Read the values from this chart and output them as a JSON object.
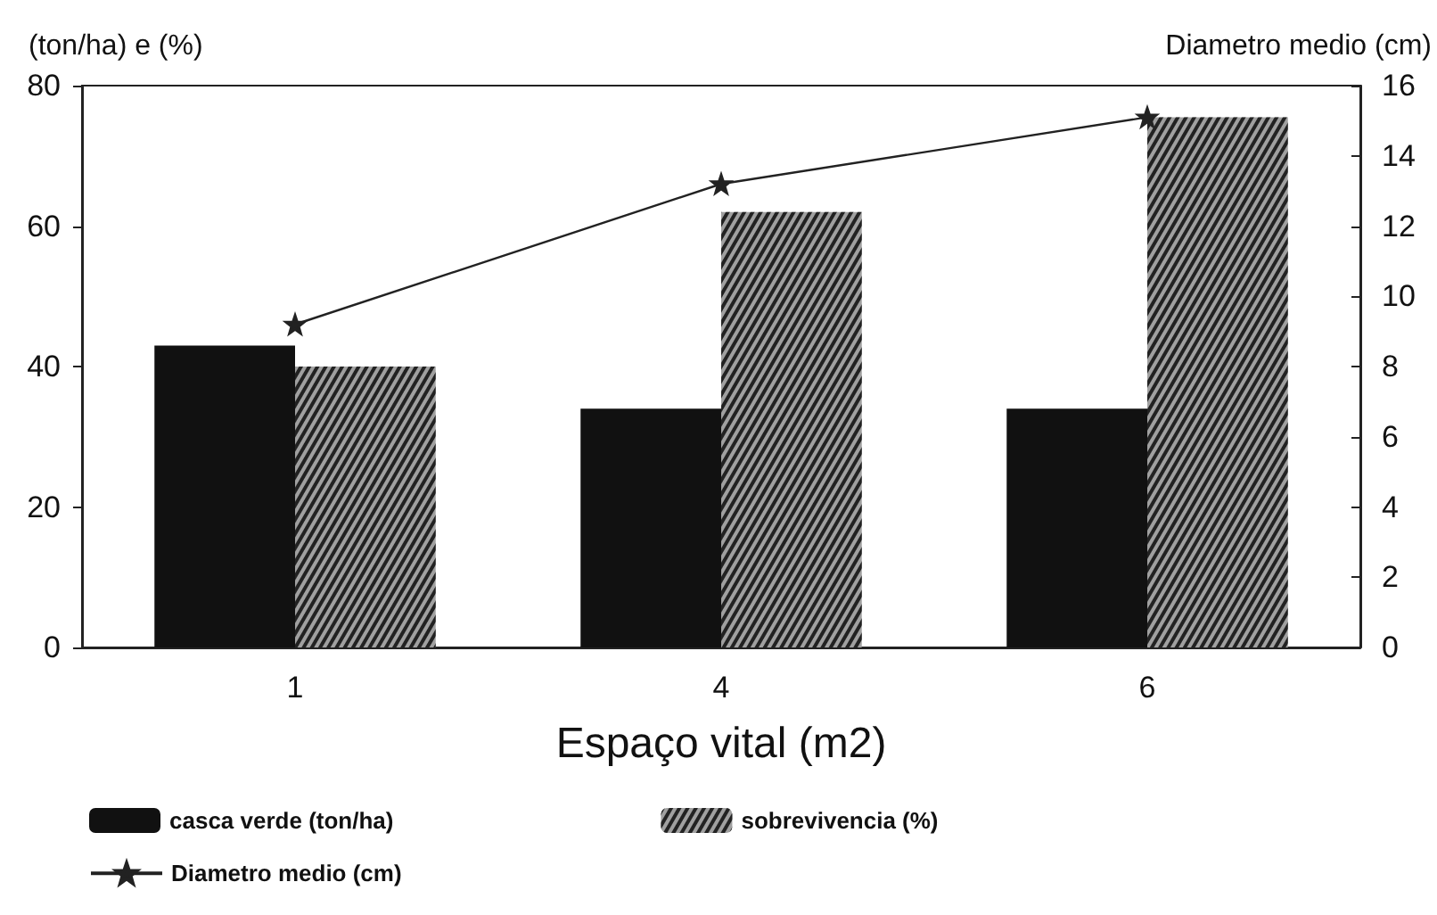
{
  "chart_data": {
    "type": "bar",
    "xlabel": "Espaço vital (m2)",
    "ylabel": "(ton/ha) e (%)",
    "y2label": "Diametro medio (cm)",
    "categories": [
      "1",
      "4",
      "6"
    ],
    "series": [
      {
        "name": "casca verde (ton/ha)",
        "color": "#111111",
        "values": [
          43,
          34,
          34
        ]
      },
      {
        "name": "sobrevivencia (%)",
        "color": "#a0a0a0",
        "values": [
          40,
          62,
          75.5
        ]
      },
      {
        "name": "Diametro medio (cm)",
        "type": "line",
        "axis": "y2",
        "color": "#222222",
        "marker": "star",
        "values": [
          9.2,
          13.2,
          15.1
        ]
      }
    ],
    "ylim": [
      0,
      80
    ],
    "yticks": [
      0,
      20,
      40,
      60,
      80
    ],
    "y2lim": [
      0,
      16
    ],
    "y2ticks": [
      0,
      2,
      4,
      6,
      8,
      10,
      12,
      14,
      16
    ],
    "grid": false,
    "legend": "bottom left"
  }
}
